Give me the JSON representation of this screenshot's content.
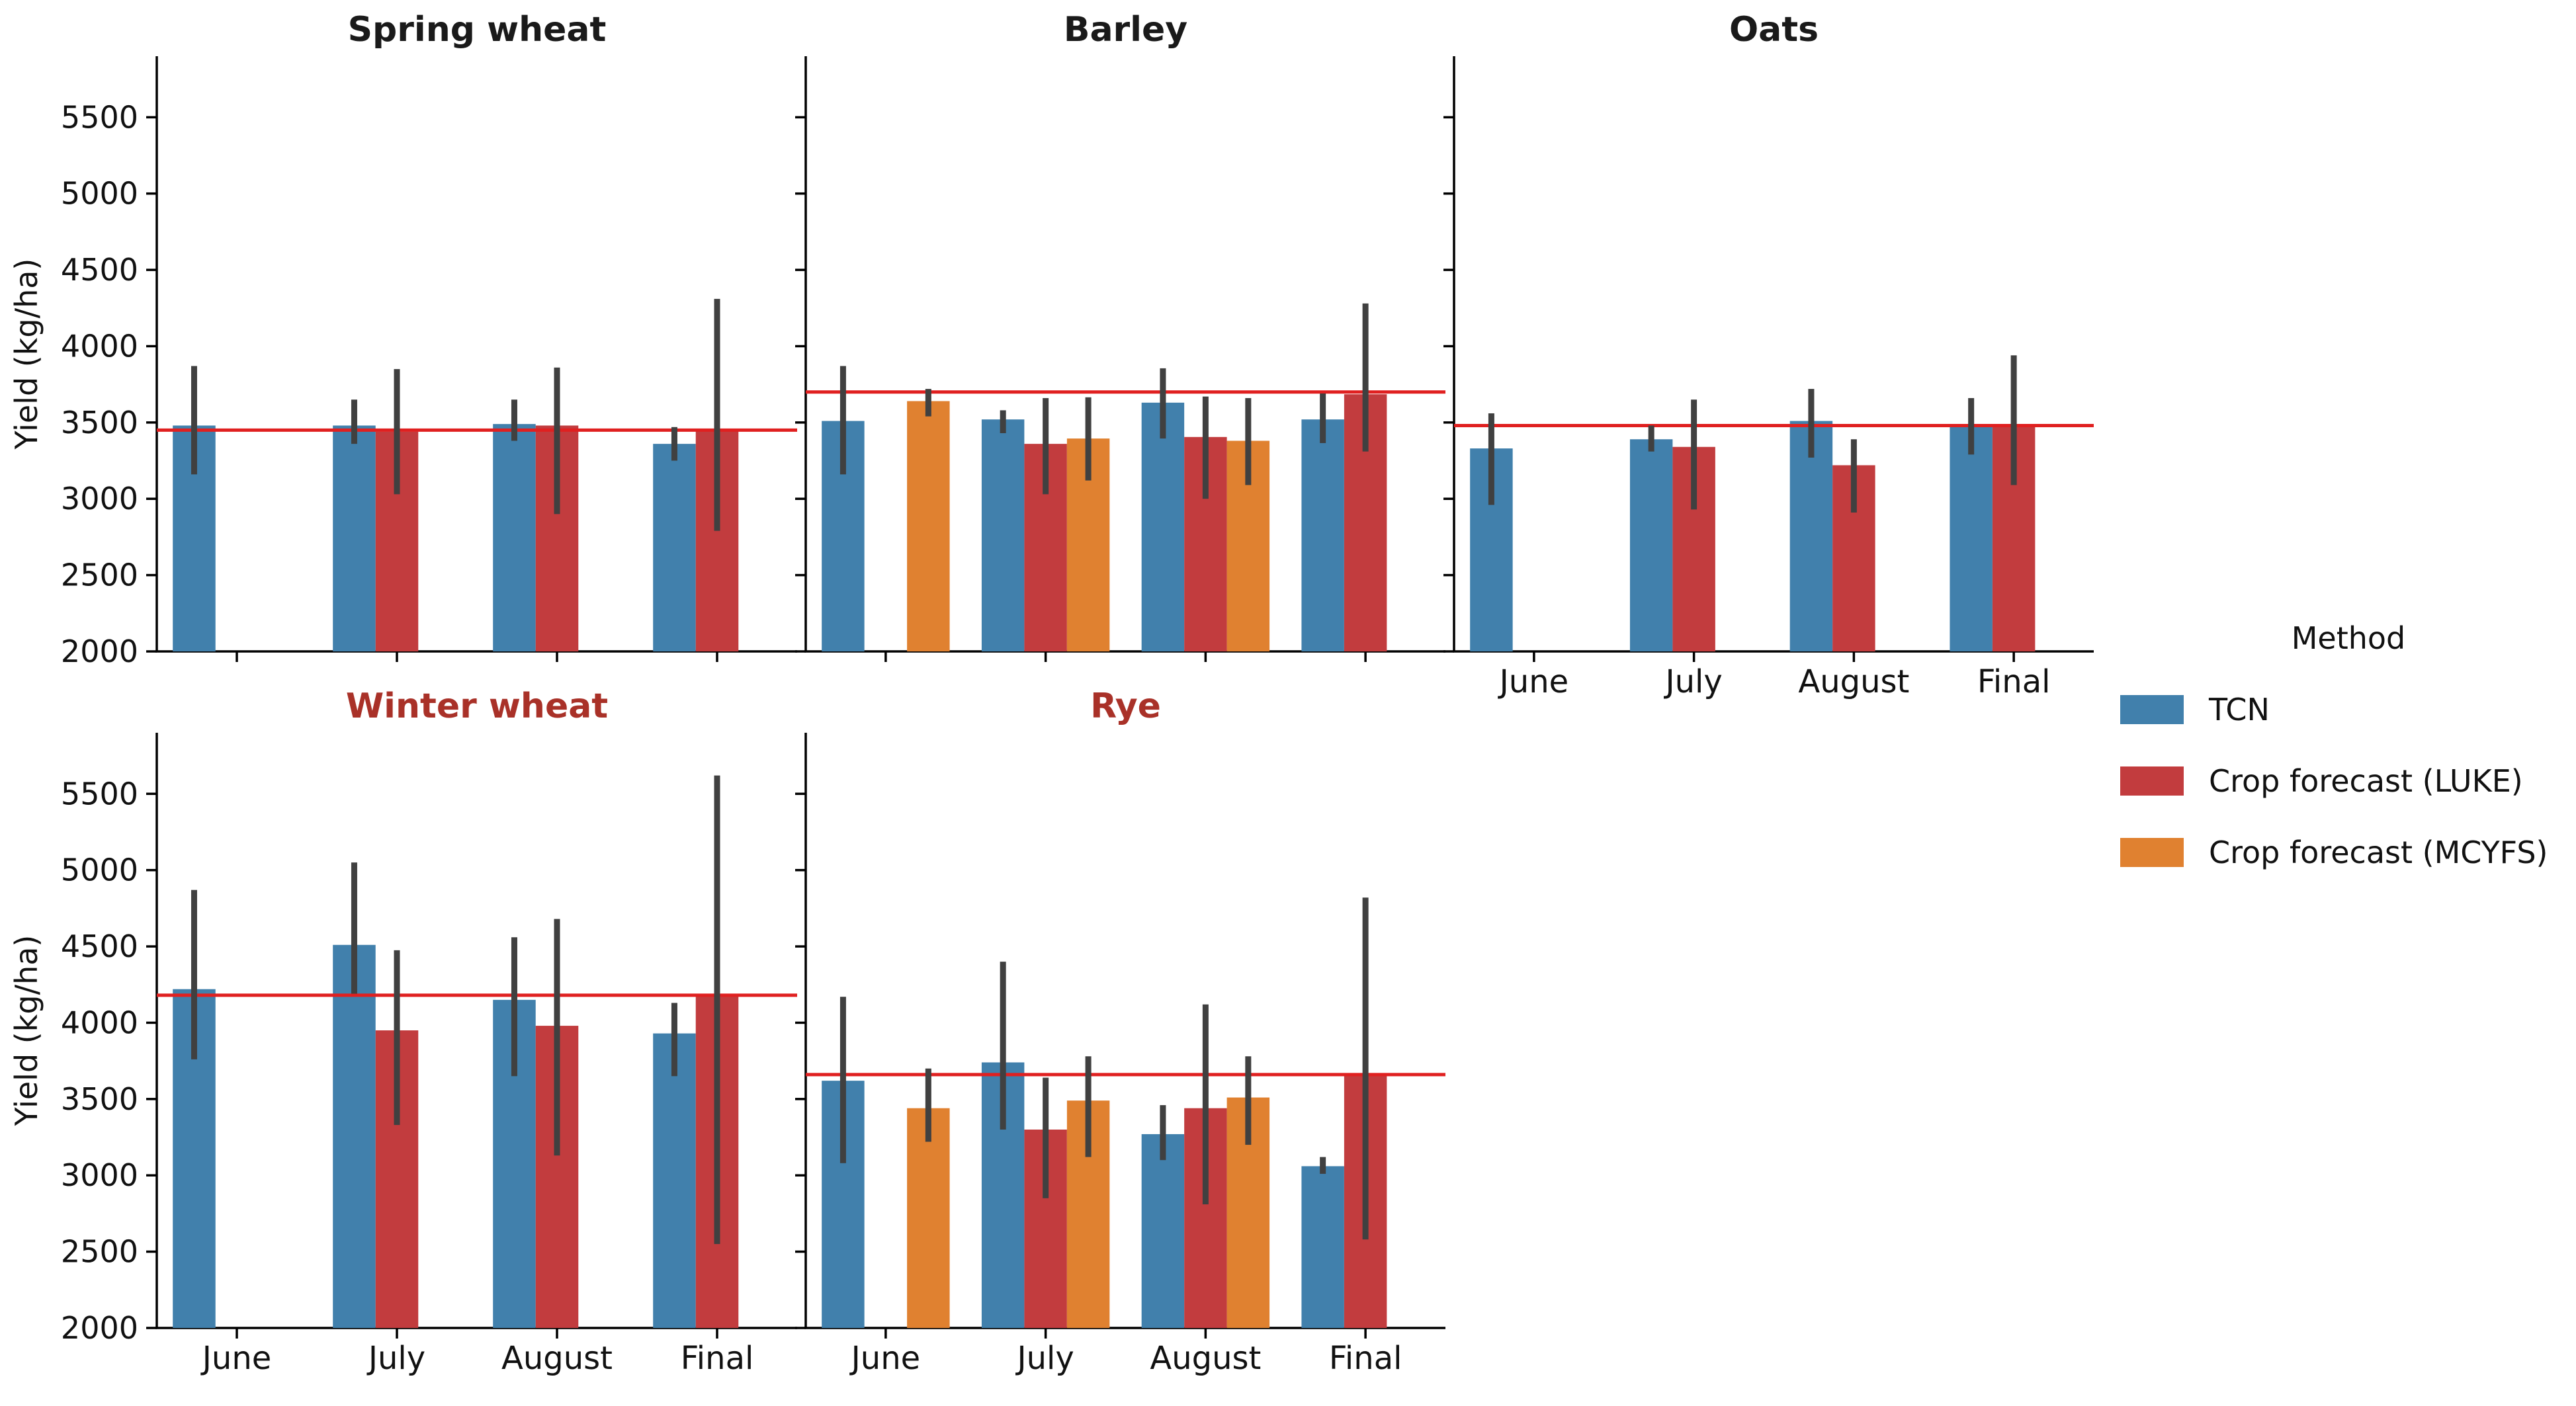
{
  "figure": {
    "ylabel": "Yield (kg/ha)",
    "background": "#ffffff",
    "colors": {
      "tcn": "#4180ac",
      "luke": "#c23c3e",
      "mcyfs": "#e08130",
      "reference_line": "#e02020",
      "error_bar": "#404040",
      "axis": "#000000",
      "title": "#1a1a1a",
      "highlight_title": "#a93128"
    }
  },
  "legend": {
    "title": "Method",
    "entries": [
      {
        "label": "TCN",
        "color_key": "tcn"
      },
      {
        "label": "Crop forecast (LUKE)",
        "color_key": "luke"
      },
      {
        "label": "Crop forecast (MCYFS)",
        "color_key": "mcyfs"
      }
    ]
  },
  "chart_data": [
    {
      "type": "bar",
      "title": "Spring wheat",
      "title_highlight": false,
      "categories": [
        "June",
        "July",
        "August",
        "Final"
      ],
      "ylabel": "Yield (kg/ha)",
      "ylim": [
        2000,
        5900
      ],
      "yticks": [
        2000,
        2500,
        3000,
        3500,
        4000,
        4500,
        5000,
        5500
      ],
      "reference_line": 3450,
      "series": [
        {
          "name": "TCN",
          "values": [
            3480,
            3480,
            3490,
            3360
          ],
          "errors": [
            [
              3160,
              3870
            ],
            [
              3360,
              3650
            ],
            [
              3380,
              3650
            ],
            [
              3250,
              3470
            ]
          ]
        },
        {
          "name": "Crop forecast (LUKE)",
          "values": [
            null,
            3440,
            3480,
            3450
          ],
          "errors": [
            null,
            [
              3030,
              3850
            ],
            [
              2900,
              3860
            ],
            [
              2790,
              4310
            ]
          ]
        },
        {
          "name": "Crop forecast (MCYFS)",
          "values": [
            null,
            null,
            null,
            null
          ],
          "errors": [
            null,
            null,
            null,
            null
          ]
        }
      ]
    },
    {
      "type": "bar",
      "title": "Barley",
      "title_highlight": false,
      "categories": [
        "June",
        "July",
        "August",
        "Final"
      ],
      "ylabel": "Yield (kg/ha)",
      "ylim": [
        2000,
        5900
      ],
      "yticks": [
        2000,
        2500,
        3000,
        3500,
        4000,
        4500,
        5000,
        5500
      ],
      "reference_line": 3700,
      "series": [
        {
          "name": "TCN",
          "values": [
            3510,
            3520,
            3630,
            3520
          ],
          "errors": [
            [
              3160,
              3870
            ],
            [
              3430,
              3580
            ],
            [
              3395,
              3855
            ],
            [
              3365,
              3690
            ]
          ]
        },
        {
          "name": "Crop forecast (LUKE)",
          "values": [
            null,
            3360,
            3405,
            3685
          ],
          "errors": [
            null,
            [
              3030,
              3660
            ],
            [
              3000,
              3670
            ],
            [
              3310,
              4280
            ]
          ]
        },
        {
          "name": "Crop forecast (MCYFS)",
          "values": [
            3640,
            3395,
            3380,
            null
          ],
          "errors": [
            [
              3540,
              3720
            ],
            [
              3120,
              3665
            ],
            [
              3090,
              3660
            ],
            null
          ]
        }
      ]
    },
    {
      "type": "bar",
      "title": "Oats",
      "title_highlight": false,
      "categories": [
        "June",
        "July",
        "August",
        "Final"
      ],
      "ylabel": "Yield (kg/ha)",
      "ylim": [
        2000,
        5900
      ],
      "yticks": [
        2000,
        2500,
        3000,
        3500,
        4000,
        4500,
        5000,
        5500
      ],
      "reference_line": 3480,
      "series": [
        {
          "name": "TCN",
          "values": [
            3330,
            3390,
            3510,
            3470
          ],
          "errors": [
            [
              2960,
              3560
            ],
            [
              3310,
              3480
            ],
            [
              3270,
              3720
            ],
            [
              3290,
              3660
            ]
          ]
        },
        {
          "name": "Crop forecast (LUKE)",
          "values": [
            null,
            3340,
            3220,
            3480
          ],
          "errors": [
            null,
            [
              2930,
              3650
            ],
            [
              2910,
              3390
            ],
            [
              3090,
              3940
            ]
          ]
        },
        {
          "name": "Crop forecast (MCYFS)",
          "values": [
            null,
            null,
            null,
            null
          ],
          "errors": [
            null,
            null,
            null,
            null
          ]
        }
      ]
    },
    {
      "type": "bar",
      "title": "Winter wheat",
      "title_highlight": true,
      "categories": [
        "June",
        "July",
        "August",
        "Final"
      ],
      "ylabel": "Yield (kg/ha)",
      "ylim": [
        2000,
        5900
      ],
      "yticks": [
        2000,
        2500,
        3000,
        3500,
        4000,
        4500,
        5000,
        5500
      ],
      "reference_line": 4180,
      "series": [
        {
          "name": "TCN",
          "values": [
            4220,
            4510,
            4150,
            3930
          ],
          "errors": [
            [
              3760,
              4870
            ],
            [
              4190,
              5050
            ],
            [
              3650,
              4560
            ],
            [
              3650,
              4130
            ]
          ]
        },
        {
          "name": "Crop forecast (LUKE)",
          "values": [
            null,
            3950,
            3980,
            4180
          ],
          "errors": [
            null,
            [
              3330,
              4475
            ],
            [
              3130,
              4680
            ],
            [
              2550,
              5620
            ]
          ]
        },
        {
          "name": "Crop forecast (MCYFS)",
          "values": [
            null,
            null,
            null,
            null
          ],
          "errors": [
            null,
            null,
            null,
            null
          ]
        }
      ]
    },
    {
      "type": "bar",
      "title": "Rye",
      "title_highlight": true,
      "categories": [
        "June",
        "July",
        "August",
        "Final"
      ],
      "ylabel": "Yield (kg/ha)",
      "ylim": [
        2000,
        5900
      ],
      "yticks": [
        2000,
        2500,
        3000,
        3500,
        4000,
        4500,
        5000,
        5500
      ],
      "reference_line": 3660,
      "series": [
        {
          "name": "TCN",
          "values": [
            3620,
            3740,
            3270,
            3060
          ],
          "errors": [
            [
              3080,
              4170
            ],
            [
              3300,
              4400
            ],
            [
              3100,
              3460
            ],
            [
              3010,
              3120
            ]
          ]
        },
        {
          "name": "Crop forecast (LUKE)",
          "values": [
            null,
            3300,
            3440,
            3660
          ],
          "errors": [
            null,
            [
              2850,
              3640
            ],
            [
              2810,
              4120
            ],
            [
              2580,
              4820
            ]
          ]
        },
        {
          "name": "Crop forecast (MCYFS)",
          "values": [
            3440,
            3490,
            3510,
            null
          ],
          "errors": [
            [
              3220,
              3700
            ],
            [
              3120,
              3780
            ],
            [
              3200,
              3780
            ],
            null
          ]
        }
      ]
    }
  ]
}
